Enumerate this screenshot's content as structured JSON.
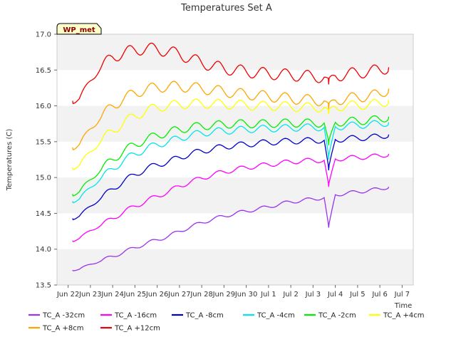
{
  "chart_data": {
    "type": "line",
    "title": "Temperatures Set A",
    "xlabel": "Time",
    "ylabel": "Temperatures (C)",
    "ylim": [
      13.5,
      17.0
    ],
    "xlim": [
      0,
      16
    ],
    "y_ticks": [
      13.5,
      14.0,
      14.5,
      15.0,
      15.5,
      16.0,
      16.5,
      17.0
    ],
    "x_ticks": [
      {
        "label": "Jun 22",
        "x": 0.5
      },
      {
        "label": "Jun 23",
        "x": 1.5
      },
      {
        "label": "Jun 24",
        "x": 2.5
      },
      {
        "label": "Jun 25",
        "x": 3.5
      },
      {
        "label": "Jun 26",
        "x": 4.5
      },
      {
        "label": "Jun 27",
        "x": 5.5
      },
      {
        "label": "Jun 28",
        "x": 6.5
      },
      {
        "label": "Jun 29",
        "x": 7.5
      },
      {
        "label": "Jun 30",
        "x": 8.5
      },
      {
        "label": "Jul 1",
        "x": 9.5
      },
      {
        "label": "Jul 2",
        "x": 10.5
      },
      {
        "label": "Jul 3",
        "x": 11.5
      },
      {
        "label": "Jul 4",
        "x": 12.5
      },
      {
        "label": "Jul 5",
        "x": 13.5
      },
      {
        "label": "Jul 6",
        "x": 14.5
      },
      {
        "label": "Jul 7",
        "x": 15.5
      }
    ],
    "grid": "horizontal-bands",
    "legend_position": "bottom",
    "badge": "WP_met",
    "x": [
      0.7,
      1.0,
      1.5,
      2.0,
      2.5,
      3.0,
      3.5,
      4.0,
      4.5,
      5.0,
      5.5,
      6.0,
      6.5,
      7.0,
      7.5,
      8.0,
      8.5,
      9.0,
      9.5,
      10.0,
      10.5,
      11.0,
      11.5,
      12.0,
      12.2,
      12.5,
      13.0,
      13.5,
      14.0,
      14.5,
      14.9
    ],
    "series": [
      {
        "name": "TC_A -32cm",
        "color": "#9933ee",
        "values": [
          13.71,
          13.72,
          13.79,
          13.84,
          13.9,
          13.96,
          14.02,
          14.08,
          14.13,
          14.18,
          14.25,
          14.31,
          14.37,
          14.42,
          14.46,
          14.5,
          14.53,
          14.56,
          14.59,
          14.63,
          14.66,
          14.68,
          14.7,
          14.72,
          14.3,
          14.76,
          14.78,
          14.8,
          14.82,
          14.84,
          14.87
        ]
      },
      {
        "name": "TC_A -16cm",
        "color": "#ff00ff",
        "values": [
          14.12,
          14.15,
          14.26,
          14.34,
          14.43,
          14.52,
          14.6,
          14.67,
          14.74,
          14.8,
          14.88,
          14.94,
          14.99,
          15.04,
          15.08,
          15.11,
          15.14,
          15.16,
          15.18,
          15.2,
          15.22,
          15.23,
          15.24,
          15.24,
          14.87,
          15.26,
          15.27,
          15.28,
          15.29,
          15.3,
          15.33
        ]
      },
      {
        "name": "TC_A -8cm",
        "color": "#0000cc",
        "values": [
          14.43,
          14.46,
          14.6,
          14.72,
          14.84,
          14.95,
          15.04,
          15.12,
          15.18,
          15.22,
          15.28,
          15.33,
          15.37,
          15.4,
          15.43,
          15.45,
          15.46,
          15.48,
          15.49,
          15.5,
          15.51,
          15.51,
          15.52,
          15.52,
          15.1,
          15.53,
          15.54,
          15.55,
          15.56,
          15.57,
          15.6
        ]
      },
      {
        "name": "TC_A -4cm",
        "color": "#00e5ee",
        "values": [
          14.67,
          14.7,
          14.86,
          15.0,
          15.12,
          15.24,
          15.33,
          15.4,
          15.46,
          15.5,
          15.55,
          15.59,
          15.62,
          15.64,
          15.65,
          15.66,
          15.67,
          15.68,
          15.68,
          15.69,
          15.69,
          15.7,
          15.7,
          15.7,
          15.25,
          15.71,
          15.72,
          15.73,
          15.74,
          15.75,
          15.77
        ]
      },
      {
        "name": "TC_A -2cm",
        "color": "#00ee00",
        "values": [
          14.77,
          14.8,
          14.97,
          15.12,
          15.25,
          15.37,
          15.46,
          15.53,
          15.59,
          15.63,
          15.67,
          15.7,
          15.72,
          15.73,
          15.74,
          15.75,
          15.75,
          15.75,
          15.75,
          15.76,
          15.76,
          15.76,
          15.76,
          15.76,
          15.45,
          15.77,
          15.78,
          15.79,
          15.8,
          15.81,
          15.85
        ]
      },
      {
        "name": "TC_A +4cm",
        "color": "#ffff00",
        "values": [
          15.14,
          15.17,
          15.36,
          15.52,
          15.65,
          15.77,
          15.86,
          15.93,
          15.98,
          16.0,
          16.02,
          16.03,
          16.03,
          16.03,
          16.02,
          16.02,
          16.01,
          16.0,
          16.0,
          16.0,
          15.99,
          15.98,
          15.98,
          15.98,
          15.88,
          15.99,
          16.0,
          16.01,
          16.02,
          16.03,
          16.08
        ]
      },
      {
        "name": "TC_A +8cm",
        "color": "#ffa500",
        "values": [
          15.42,
          15.46,
          15.68,
          15.85,
          16.0,
          16.1,
          16.18,
          16.23,
          16.26,
          16.27,
          16.27,
          16.26,
          16.24,
          16.22,
          16.2,
          16.18,
          16.16,
          16.15,
          16.13,
          16.12,
          16.1,
          16.09,
          16.08,
          16.07,
          15.96,
          16.08,
          16.1,
          16.12,
          16.14,
          16.16,
          16.24
        ]
      },
      {
        "name": "TC_A +12cm",
        "color": "#ee0000",
        "values": [
          16.07,
          16.1,
          16.35,
          16.55,
          16.68,
          16.74,
          16.78,
          16.8,
          16.79,
          16.76,
          16.72,
          16.66,
          16.6,
          16.56,
          16.52,
          16.5,
          16.48,
          16.46,
          16.45,
          16.44,
          16.43,
          16.42,
          16.41,
          16.4,
          16.3,
          16.42,
          16.44,
          16.46,
          16.48,
          16.5,
          16.54
        ]
      }
    ]
  }
}
